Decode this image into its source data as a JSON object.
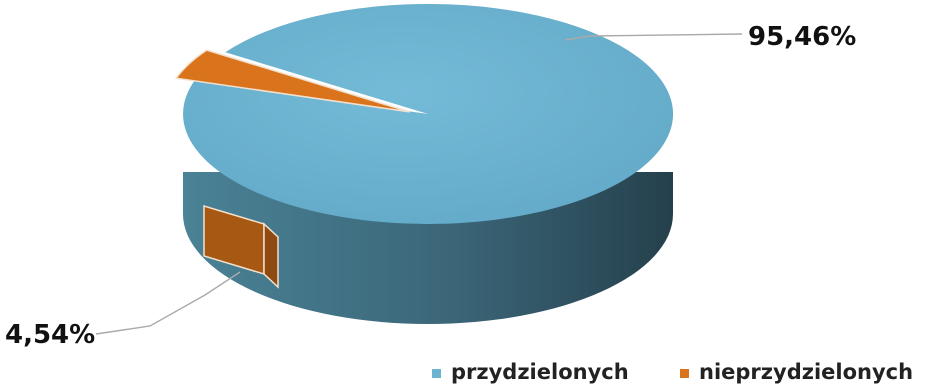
{
  "chart_data": {
    "type": "pie",
    "style": "3d-exploded",
    "title": "",
    "categories": [
      "przydzielonych",
      "nieprzydzielonych"
    ],
    "values": [
      95.46,
      4.54
    ],
    "unit": "%",
    "data_labels": [
      "95,46%",
      "4,54%"
    ],
    "colors": [
      "#6bb3d1",
      "#d9741d"
    ],
    "legend_position": "bottom-right"
  }
}
